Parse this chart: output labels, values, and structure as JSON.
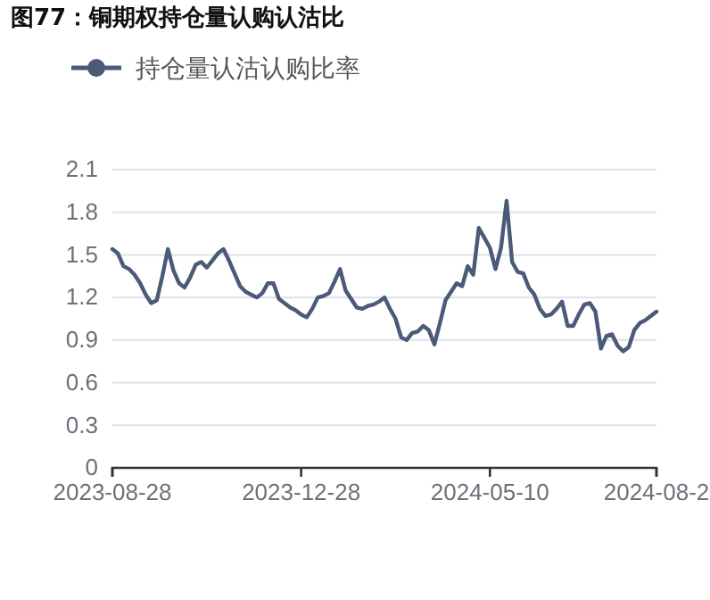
{
  "chart_data": {
    "type": "line",
    "title": "图77：铜期权持仓量认购认沽比",
    "legend": "top",
    "grid": "y",
    "categories": [
      "2023-08-28",
      null,
      null,
      null,
      null,
      null,
      null,
      null,
      null,
      null,
      null,
      null,
      null,
      null,
      null,
      null,
      null,
      null,
      null,
      null,
      null,
      null,
      null,
      null,
      null,
      null,
      null,
      null,
      null,
      null,
      null,
      null,
      null,
      null,
      "2023-12-28",
      null,
      null,
      null,
      null,
      null,
      null,
      null,
      null,
      null,
      null,
      null,
      null,
      null,
      null,
      null,
      null,
      null,
      null,
      null,
      null,
      null,
      null,
      null,
      null,
      null,
      null,
      null,
      null,
      null,
      null,
      null,
      null,
      null,
      "2024-05-10",
      null,
      null,
      null,
      null,
      null,
      null,
      null,
      null,
      null,
      null,
      null,
      null,
      null,
      null,
      null,
      null,
      null,
      null,
      null,
      null,
      null,
      null,
      null,
      null,
      null,
      null,
      null,
      null,
      null,
      "2024-08-2"
    ],
    "ylim": [
      0,
      2.1
    ],
    "yticks": [
      0,
      0.3,
      0.6,
      0.9,
      1.2,
      1.5,
      1.8,
      2.1
    ],
    "series": [
      {
        "name": "持仓量认沽认购比率",
        "color": "#4a5a78",
        "values": [
          1.54,
          1.51,
          1.42,
          1.4,
          1.36,
          1.3,
          1.22,
          1.16,
          1.18,
          1.35,
          1.54,
          1.39,
          1.3,
          1.27,
          1.34,
          1.43,
          1.45,
          1.41,
          1.46,
          1.51,
          1.54,
          1.46,
          1.37,
          1.28,
          1.24,
          1.22,
          1.2,
          1.23,
          1.3,
          1.3,
          1.19,
          1.16,
          1.13,
          1.11,
          1.08,
          1.06,
          1.12,
          1.2,
          1.21,
          1.23,
          1.31,
          1.4,
          1.25,
          1.19,
          1.13,
          1.12,
          1.14,
          1.15,
          1.17,
          1.2,
          1.12,
          1.05,
          0.92,
          0.9,
          0.95,
          0.96,
          1.0,
          0.97,
          0.87,
          1.02,
          1.18,
          1.24,
          1.3,
          1.28,
          1.42,
          1.36,
          1.69,
          1.62,
          1.55,
          1.4,
          1.55,
          1.88,
          1.45,
          1.38,
          1.37,
          1.27,
          1.22,
          1.12,
          1.07,
          1.08,
          1.12,
          1.17,
          1.0,
          1.0,
          1.08,
          1.15,
          1.16,
          1.1,
          0.84,
          0.93,
          0.94,
          0.86,
          0.82,
          0.85,
          0.97,
          1.02,
          1.04,
          1.07,
          1.1
        ]
      }
    ]
  }
}
